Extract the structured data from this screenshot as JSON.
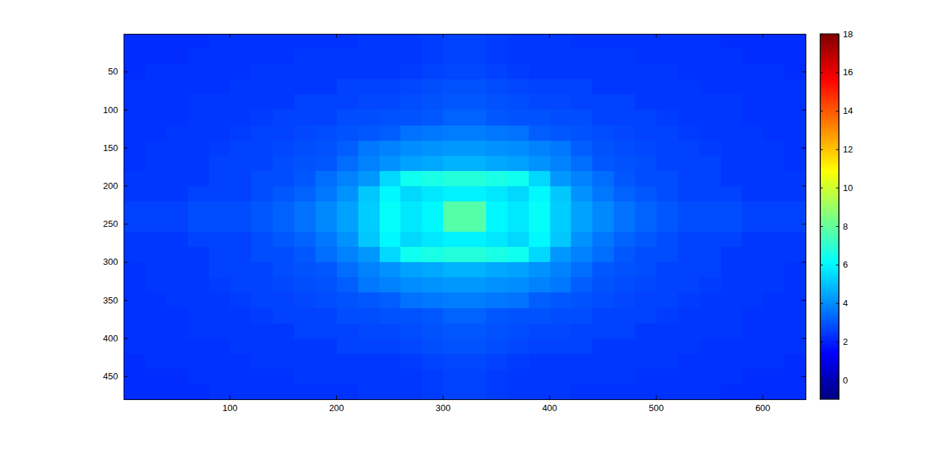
{
  "chart_data": {
    "type": "heatmap",
    "xlim": [
      0.5,
      640.5
    ],
    "xticks": [
      100,
      200,
      300,
      400,
      500,
      600
    ],
    "ylim": [
      0.5,
      480.5
    ],
    "yticks": [
      50,
      100,
      150,
      200,
      250,
      300,
      350,
      400,
      450
    ],
    "zlim": [
      -1,
      18
    ],
    "zticks": [
      0,
      2,
      4,
      6,
      8,
      10,
      12,
      14,
      16,
      18
    ],
    "z": [
      [
        2.2,
        2.2,
        2.2,
        2.2,
        2.3,
        2.3,
        2.3,
        2.3,
        2.3,
        2.3,
        2.3,
        2.4,
        2.4,
        2.4,
        2.5,
        2.6,
        2.6,
        2.5,
        2.4,
        2.4,
        2.4,
        2.3,
        2.3,
        2.3,
        2.3,
        2.3,
        2.3,
        2.3,
        2.2,
        2.2,
        2.2,
        2.2
      ],
      [
        2.2,
        2.2,
        2.2,
        2.3,
        2.3,
        2.3,
        2.3,
        2.3,
        2.4,
        2.4,
        2.4,
        2.4,
        2.4,
        2.4,
        2.5,
        2.6,
        2.6,
        2.5,
        2.4,
        2.4,
        2.4,
        2.4,
        2.4,
        2.4,
        2.3,
        2.3,
        2.3,
        2.3,
        2.3,
        2.2,
        2.2,
        2.2
      ],
      [
        2.2,
        2.3,
        2.3,
        2.3,
        2.3,
        2.3,
        2.4,
        2.4,
        2.4,
        2.4,
        2.4,
        2.4,
        2.4,
        2.5,
        2.6,
        2.7,
        2.7,
        2.6,
        2.5,
        2.4,
        2.4,
        2.4,
        2.4,
        2.4,
        2.4,
        2.4,
        2.3,
        2.3,
        2.3,
        2.3,
        2.3,
        2.2
      ],
      [
        2.3,
        2.3,
        2.3,
        2.3,
        2.3,
        2.4,
        2.4,
        2.4,
        2.4,
        2.4,
        2.6,
        2.6,
        2.6,
        2.7,
        2.8,
        2.9,
        2.9,
        2.8,
        2.7,
        2.6,
        2.6,
        2.6,
        2.4,
        2.4,
        2.4,
        2.4,
        2.4,
        2.3,
        2.3,
        2.3,
        2.3,
        2.3
      ],
      [
        2.3,
        2.3,
        2.3,
        2.4,
        2.4,
        2.4,
        2.4,
        2.4,
        2.6,
        2.6,
        2.6,
        2.7,
        2.7,
        2.8,
        2.9,
        3.0,
        3.0,
        2.9,
        2.8,
        2.7,
        2.7,
        2.6,
        2.6,
        2.6,
        2.4,
        2.4,
        2.4,
        2.4,
        2.4,
        2.3,
        2.3,
        2.3
      ],
      [
        2.3,
        2.3,
        2.3,
        2.4,
        2.4,
        2.4,
        2.5,
        2.6,
        2.6,
        2.6,
        2.8,
        2.8,
        2.9,
        2.9,
        3.0,
        3.2,
        3.2,
        3.0,
        2.9,
        2.9,
        2.8,
        2.8,
        2.6,
        2.6,
        2.6,
        2.5,
        2.4,
        2.4,
        2.4,
        2.3,
        2.3,
        2.3
      ],
      [
        2.3,
        2.3,
        2.4,
        2.4,
        2.4,
        2.5,
        2.6,
        2.6,
        2.7,
        2.8,
        2.9,
        3.0,
        3.1,
        3.5,
        3.6,
        3.7,
        3.7,
        3.6,
        3.5,
        3.1,
        3.0,
        2.9,
        2.8,
        2.7,
        2.6,
        2.6,
        2.5,
        2.4,
        2.4,
        2.4,
        2.3,
        2.3
      ],
      [
        2.3,
        2.4,
        2.4,
        2.4,
        2.5,
        2.6,
        2.6,
        2.7,
        2.8,
        2.9,
        3.1,
        3.6,
        3.8,
        4.0,
        4.1,
        4.2,
        4.2,
        4.1,
        4.0,
        3.8,
        3.6,
        3.1,
        2.9,
        2.8,
        2.7,
        2.6,
        2.6,
        2.5,
        2.4,
        2.4,
        2.4,
        2.3
      ],
      [
        2.3,
        2.4,
        2.4,
        2.4,
        2.6,
        2.6,
        2.6,
        2.8,
        2.9,
        3.0,
        3.4,
        3.8,
        4.1,
        4.4,
        4.5,
        4.7,
        4.7,
        4.5,
        4.4,
        4.1,
        3.8,
        3.4,
        3.0,
        2.9,
        2.8,
        2.6,
        2.6,
        2.6,
        2.4,
        2.4,
        2.4,
        2.3
      ],
      [
        2.4,
        2.4,
        2.4,
        2.4,
        2.6,
        2.6,
        2.8,
        2.8,
        3.0,
        3.4,
        3.8,
        4.2,
        5.4,
        6.4,
        6.6,
        6.8,
        6.8,
        6.6,
        6.4,
        5.4,
        4.2,
        3.8,
        3.4,
        3.0,
        2.8,
        2.8,
        2.6,
        2.6,
        2.4,
        2.4,
        2.4,
        2.4
      ],
      [
        2.4,
        2.4,
        2.4,
        2.6,
        2.6,
        2.6,
        2.8,
        3.0,
        3.2,
        3.6,
        4.1,
        5.1,
        6.0,
        5.4,
        5.7,
        5.9,
        5.9,
        5.7,
        5.4,
        6.0,
        5.1,
        4.1,
        3.6,
        3.2,
        3.0,
        2.8,
        2.6,
        2.6,
        2.6,
        2.4,
        2.4,
        2.4
      ],
      [
        2.6,
        2.6,
        2.6,
        2.8,
        2.8,
        2.8,
        3.0,
        3.2,
        3.5,
        3.9,
        4.4,
        5.2,
        6.2,
        5.7,
        6.0,
        7.7,
        7.7,
        6.0,
        5.7,
        6.2,
        5.2,
        4.4,
        3.9,
        3.5,
        3.2,
        3.0,
        2.8,
        2.8,
        2.8,
        2.6,
        2.6,
        2.6
      ],
      [
        2.6,
        2.6,
        2.6,
        2.8,
        2.8,
        2.8,
        3.0,
        3.2,
        3.5,
        3.9,
        4.4,
        5.2,
        6.2,
        5.7,
        6.0,
        7.7,
        7.7,
        6.0,
        5.7,
        6.2,
        5.2,
        4.4,
        3.9,
        3.5,
        3.2,
        3.0,
        2.8,
        2.8,
        2.8,
        2.6,
        2.6,
        2.6
      ],
      [
        2.4,
        2.4,
        2.4,
        2.6,
        2.6,
        2.6,
        2.8,
        3.0,
        3.2,
        3.6,
        4.1,
        5.1,
        6.0,
        5.4,
        5.7,
        5.9,
        5.9,
        5.7,
        5.4,
        6.0,
        5.1,
        4.1,
        3.6,
        3.2,
        3.0,
        2.8,
        2.6,
        2.6,
        2.6,
        2.4,
        2.4,
        2.4
      ],
      [
        2.4,
        2.4,
        2.4,
        2.4,
        2.6,
        2.6,
        2.8,
        2.8,
        3.0,
        3.4,
        3.8,
        4.2,
        5.4,
        6.4,
        6.6,
        6.8,
        6.8,
        6.6,
        6.4,
        5.4,
        4.2,
        3.8,
        3.4,
        3.0,
        2.8,
        2.8,
        2.6,
        2.6,
        2.4,
        2.4,
        2.4,
        2.4
      ],
      [
        2.3,
        2.4,
        2.4,
        2.4,
        2.6,
        2.6,
        2.6,
        2.8,
        2.9,
        3.0,
        3.4,
        3.8,
        4.1,
        4.4,
        4.5,
        4.7,
        4.7,
        4.5,
        4.4,
        4.1,
        3.8,
        3.4,
        3.0,
        2.9,
        2.8,
        2.6,
        2.6,
        2.6,
        2.4,
        2.4,
        2.4,
        2.3
      ],
      [
        2.3,
        2.4,
        2.4,
        2.4,
        2.5,
        2.6,
        2.6,
        2.7,
        2.8,
        2.9,
        3.1,
        3.6,
        3.8,
        4.0,
        4.1,
        4.2,
        4.2,
        4.1,
        4.0,
        3.8,
        3.6,
        3.1,
        2.9,
        2.8,
        2.7,
        2.6,
        2.6,
        2.5,
        2.4,
        2.4,
        2.4,
        2.3
      ],
      [
        2.3,
        2.3,
        2.4,
        2.4,
        2.4,
        2.5,
        2.6,
        2.6,
        2.7,
        2.8,
        2.9,
        3.0,
        3.1,
        3.5,
        3.6,
        3.7,
        3.7,
        3.6,
        3.5,
        3.1,
        3.0,
        2.9,
        2.8,
        2.7,
        2.6,
        2.6,
        2.5,
        2.4,
        2.4,
        2.4,
        2.3,
        2.3
      ],
      [
        2.3,
        2.3,
        2.3,
        2.4,
        2.4,
        2.4,
        2.5,
        2.6,
        2.6,
        2.6,
        2.8,
        2.8,
        2.9,
        2.9,
        3.0,
        3.2,
        3.2,
        3.0,
        2.9,
        2.9,
        2.8,
        2.8,
        2.6,
        2.6,
        2.6,
        2.5,
        2.4,
        2.4,
        2.4,
        2.3,
        2.3,
        2.3
      ],
      [
        2.3,
        2.3,
        2.3,
        2.4,
        2.4,
        2.4,
        2.4,
        2.4,
        2.6,
        2.6,
        2.6,
        2.7,
        2.7,
        2.8,
        2.9,
        3.0,
        3.0,
        2.9,
        2.8,
        2.7,
        2.7,
        2.6,
        2.6,
        2.6,
        2.4,
        2.4,
        2.4,
        2.4,
        2.4,
        2.3,
        2.3,
        2.3
      ],
      [
        2.3,
        2.3,
        2.3,
        2.3,
        2.3,
        2.4,
        2.4,
        2.4,
        2.4,
        2.4,
        2.6,
        2.6,
        2.6,
        2.7,
        2.8,
        2.9,
        2.9,
        2.8,
        2.7,
        2.6,
        2.6,
        2.6,
        2.4,
        2.4,
        2.4,
        2.4,
        2.4,
        2.3,
        2.3,
        2.3,
        2.3,
        2.3
      ],
      [
        2.2,
        2.3,
        2.3,
        2.3,
        2.3,
        2.3,
        2.4,
        2.4,
        2.4,
        2.4,
        2.4,
        2.4,
        2.4,
        2.5,
        2.6,
        2.7,
        2.7,
        2.6,
        2.5,
        2.4,
        2.4,
        2.4,
        2.4,
        2.4,
        2.4,
        2.4,
        2.3,
        2.3,
        2.3,
        2.3,
        2.3,
        2.2
      ],
      [
        2.2,
        2.2,
        2.2,
        2.3,
        2.3,
        2.3,
        2.3,
        2.3,
        2.4,
        2.4,
        2.4,
        2.4,
        2.4,
        2.4,
        2.5,
        2.6,
        2.6,
        2.5,
        2.4,
        2.4,
        2.4,
        2.4,
        2.4,
        2.4,
        2.3,
        2.3,
        2.3,
        2.3,
        2.3,
        2.2,
        2.2,
        2.2
      ],
      [
        2.2,
        2.2,
        2.2,
        2.2,
        2.3,
        2.3,
        2.3,
        2.3,
        2.3,
        2.3,
        2.3,
        2.4,
        2.4,
        2.4,
        2.5,
        2.6,
        2.6,
        2.5,
        2.4,
        2.4,
        2.4,
        2.3,
        2.3,
        2.3,
        2.3,
        2.3,
        2.3,
        2.3,
        2.2,
        2.2,
        2.2,
        2.2
      ]
    ]
  }
}
